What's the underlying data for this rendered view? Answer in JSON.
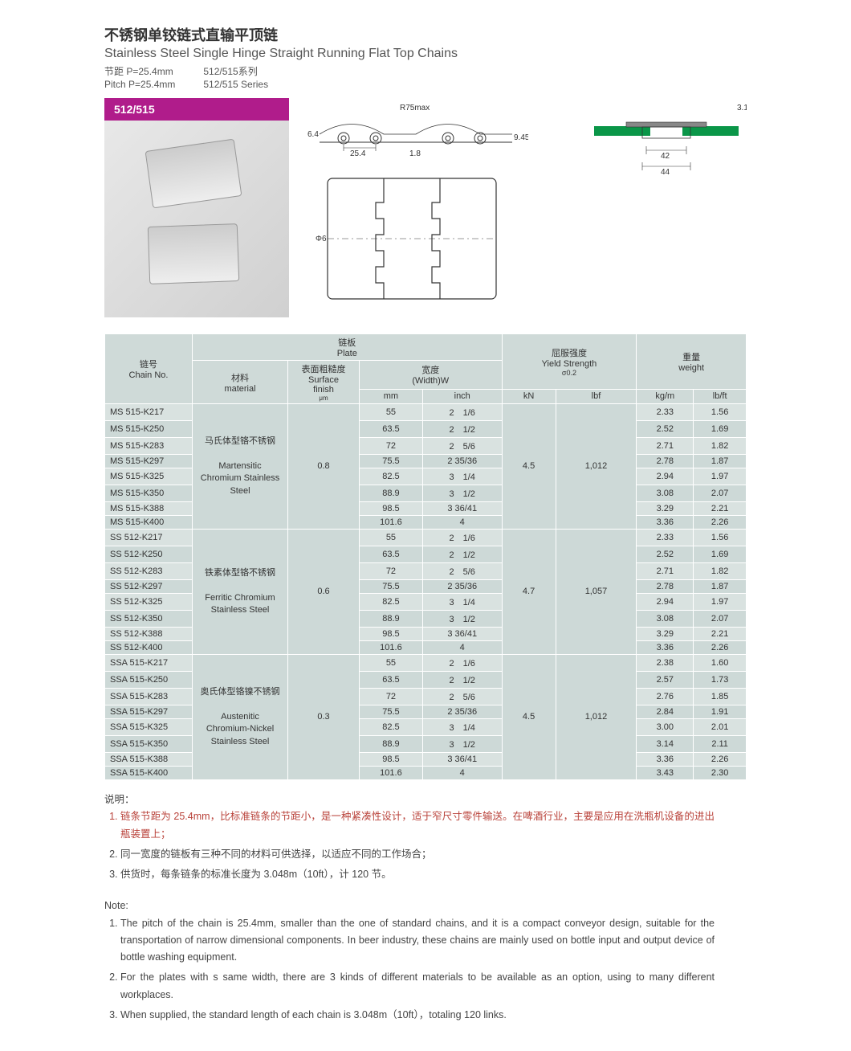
{
  "header": {
    "title_cn": "不锈钢单铰链式直输平顶链",
    "title_en": "Stainless Steel Single Hinge Straight Running Flat Top Chains",
    "pitch_cn_label": "节距 P=25.4mm",
    "pitch_cn_series": "512/515系列",
    "pitch_en_label": "Pitch P=25.4mm",
    "pitch_en_series": "512/515 Series",
    "series_label": "512/515"
  },
  "diagram": {
    "radius": "R75max",
    "height": "6.4",
    "pitch": "25.4",
    "gap": "1.8",
    "h2": "9.45",
    "pin": "Φ6",
    "cross_42": "42",
    "cross_44": "44",
    "cross_31": "3.1"
  },
  "table": {
    "headers": {
      "chain_no_cn": "链号",
      "chain_no_en": "Chain No.",
      "plate_cn": "链板",
      "plate_en": "Plate",
      "material_cn": "材料",
      "material_en": "material",
      "finish_cn": "表面粗糙度",
      "finish_en1": "Surface",
      "finish_en2": "finish",
      "finish_unit": "μm",
      "width_cn": "宽度",
      "width_en": "(Width)W",
      "yield_cn": "屈服强度",
      "yield_en1": "Yield Strength",
      "yield_en2": "σ0.2",
      "weight_cn": "重量",
      "weight_en": "weight",
      "mm": "mm",
      "inch": "inch",
      "kN": "kN",
      "lbf": "lbf",
      "kgm": "kg/m",
      "lbft": "lb/ft"
    },
    "groups": [
      {
        "material_cn": "马氏体型铬不锈钢",
        "material_en1": "Martensitic",
        "material_en2": "Chromium Stainless",
        "material_en3": "Steel",
        "finish": "0.8",
        "yield_kn": "4.5",
        "yield_lbf": "1,012",
        "rows": [
          {
            "no": "MS 515-K217",
            "mm": "55",
            "inch": "2　1/6",
            "kgm": "2.33",
            "lbft": "1.56"
          },
          {
            "no": "MS 515-K250",
            "mm": "63.5",
            "inch": "2　1/2",
            "kgm": "2.52",
            "lbft": "1.69"
          },
          {
            "no": "MS 515-K283",
            "mm": "72",
            "inch": "2　5/6",
            "kgm": "2.71",
            "lbft": "1.82"
          },
          {
            "no": "MS 515-K297",
            "mm": "75.5",
            "inch": "2 35/36",
            "kgm": "2.78",
            "lbft": "1.87"
          },
          {
            "no": "MS 515-K325",
            "mm": "82.5",
            "inch": "3　1/4",
            "kgm": "2.94",
            "lbft": "1.97"
          },
          {
            "no": "MS 515-K350",
            "mm": "88.9",
            "inch": "3　1/2",
            "kgm": "3.08",
            "lbft": "2.07"
          },
          {
            "no": "MS 515-K388",
            "mm": "98.5",
            "inch": "3 36/41",
            "kgm": "3.29",
            "lbft": "2.21"
          },
          {
            "no": "MS 515-K400",
            "mm": "101.6",
            "inch": "4",
            "kgm": "3.36",
            "lbft": "2.26"
          }
        ]
      },
      {
        "material_cn": "铁素体型铬不锈钢",
        "material_en1": "Ferritic Chromium",
        "material_en2": "Stainless Steel",
        "material_en3": "",
        "finish": "0.6",
        "yield_kn": "4.7",
        "yield_lbf": "1,057",
        "rows": [
          {
            "no": "SS 512-K217",
            "mm": "55",
            "inch": "2　1/6",
            "kgm": "2.33",
            "lbft": "1.56"
          },
          {
            "no": "SS 512-K250",
            "mm": "63.5",
            "inch": "2　1/2",
            "kgm": "2.52",
            "lbft": "1.69"
          },
          {
            "no": "SS 512-K283",
            "mm": "72",
            "inch": "2　5/6",
            "kgm": "2.71",
            "lbft": "1.82"
          },
          {
            "no": "SS 512-K297",
            "mm": "75.5",
            "inch": "2 35/36",
            "kgm": "2.78",
            "lbft": "1.87"
          },
          {
            "no": "SS 512-K325",
            "mm": "82.5",
            "inch": "3　1/4",
            "kgm": "2.94",
            "lbft": "1.97"
          },
          {
            "no": "SS 512-K350",
            "mm": "88.9",
            "inch": "3　1/2",
            "kgm": "3.08",
            "lbft": "2.07"
          },
          {
            "no": "SS 512-K388",
            "mm": "98.5",
            "inch": "3 36/41",
            "kgm": "3.29",
            "lbft": "2.21"
          },
          {
            "no": "SS 512-K400",
            "mm": "101.6",
            "inch": "4",
            "kgm": "3.36",
            "lbft": "2.26"
          }
        ]
      },
      {
        "material_cn": "奥氏体型铬镍不锈钢",
        "material_en1": "Austenitic",
        "material_en2": "Chromium-Nickel",
        "material_en3": "Stainless Steel",
        "finish": "0.3",
        "yield_kn": "4.5",
        "yield_lbf": "1,012",
        "rows": [
          {
            "no": "SSA 515-K217",
            "mm": "55",
            "inch": "2　1/6",
            "kgm": "2.38",
            "lbft": "1.60"
          },
          {
            "no": "SSA 515-K250",
            "mm": "63.5",
            "inch": "2　1/2",
            "kgm": "2.57",
            "lbft": "1.73"
          },
          {
            "no": "SSA 515-K283",
            "mm": "72",
            "inch": "2　5/6",
            "kgm": "2.76",
            "lbft": "1.85"
          },
          {
            "no": "SSA 515-K297",
            "mm": "75.5",
            "inch": "2 35/36",
            "kgm": "2.84",
            "lbft": "1.91"
          },
          {
            "no": "SSA 515-K325",
            "mm": "82.5",
            "inch": "3　1/4",
            "kgm": "3.00",
            "lbft": "2.01"
          },
          {
            "no": "SSA 515-K350",
            "mm": "88.9",
            "inch": "3　1/2",
            "kgm": "3.14",
            "lbft": "2.11"
          },
          {
            "no": "SSA 515-K388",
            "mm": "98.5",
            "inch": "3 36/41",
            "kgm": "3.36",
            "lbft": "2.26"
          },
          {
            "no": "SSA 515-K400",
            "mm": "101.6",
            "inch": "4",
            "kgm": "3.43",
            "lbft": "2.30"
          }
        ]
      }
    ]
  },
  "notes_cn": {
    "label": "说明：",
    "items": [
      "链条节距为 25.4mm，比标准链条的节距小，是一种紧凑性设计，适于窄尺寸零件输送。在啤酒行业，主要是应用在洗瓶机设备的进出瓶装置上；",
      "同一宽度的链板有三种不同的材料可供选择，以适应不同的工作场合；",
      "供货时，每条链条的标准长度为 3.048m（10ft），计 120 节。"
    ]
  },
  "notes_en": {
    "label": "Note:",
    "items": [
      "The pitch of the chain is 25.4mm, smaller than the one of standard chains, and it is a compact conveyor design, suitable for the transportation of narrow dimensional components. In beer industry, these chains are mainly used on bottle input and output device of bottle washing equipment.",
      "For the plates with s same width, there are 3 kinds of different materials to be available as an option, using to many different workplaces.",
      "When supplied, the standard length of each chain is 3.048m（10ft），totaling 120 links."
    ]
  }
}
